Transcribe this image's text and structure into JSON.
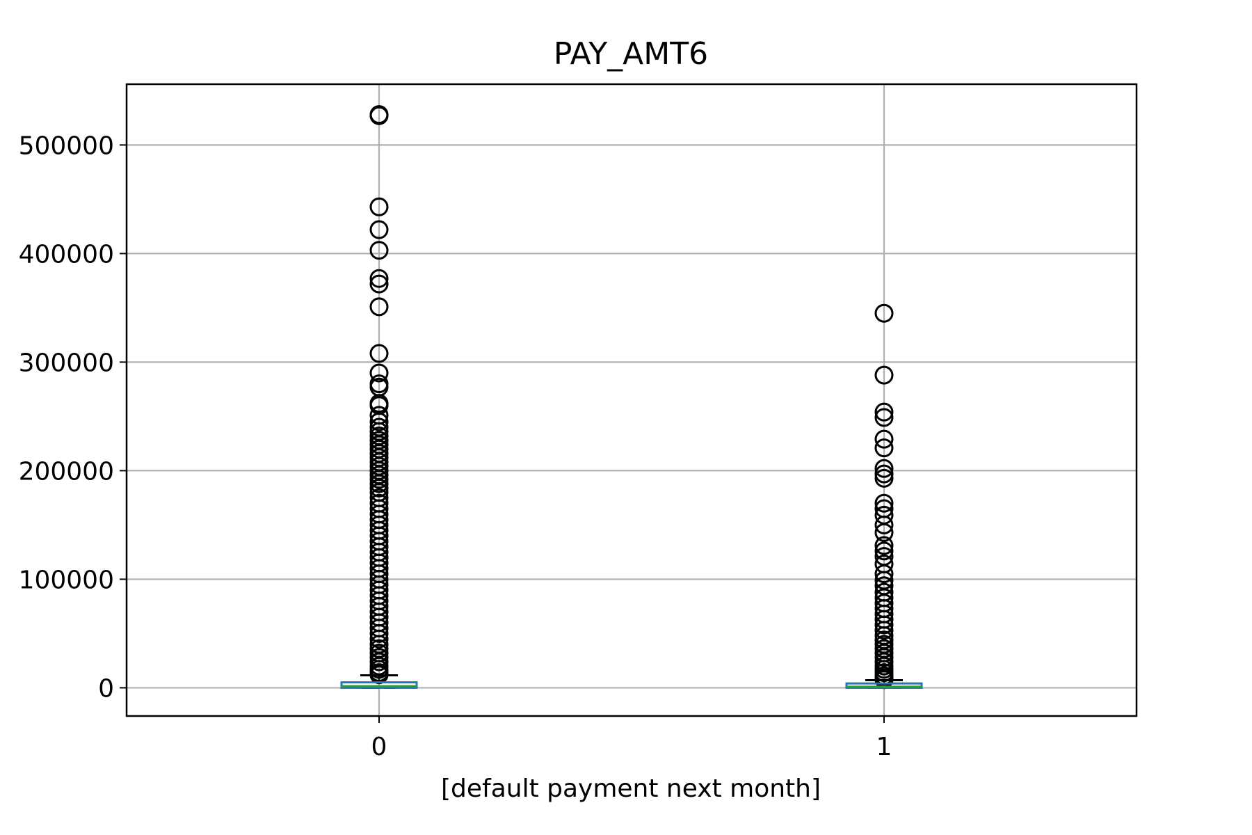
{
  "chart_data": {
    "type": "box",
    "title": "PAY_AMT6",
    "xlabel": "[default payment next month]",
    "ylabel": "",
    "categories": [
      "0",
      "1"
    ],
    "ylim": [
      -26000,
      556000
    ],
    "yticks": [
      0,
      100000,
      200000,
      300000,
      400000,
      500000
    ],
    "ytick_labels": [
      "0",
      "100000",
      "200000",
      "300000",
      "400000",
      "500000"
    ],
    "grid": true,
    "colors": {
      "box": "#1f77b4",
      "median": "#2ca02c",
      "whisker": "#000000",
      "flier": "#000000",
      "grid": "#b0b0b0"
    },
    "boxes": [
      {
        "category": "0",
        "whisker_low": 0,
        "q1": 0,
        "median": 1500,
        "q3": 5000,
        "whisker_high": 11500,
        "fliers": [
          528000,
          527000,
          443000,
          422000,
          403000,
          377000,
          372000,
          351000,
          308000,
          290000,
          280000,
          277000,
          262000,
          260000,
          251000,
          245000,
          240000,
          236000,
          232000,
          228000,
          224000,
          220000,
          216000,
          212000,
          208000,
          204000,
          200000,
          196000,
          192000,
          188000,
          184000,
          180000,
          175000,
          170000,
          165000,
          160000,
          155000,
          150000,
          145000,
          140000,
          135000,
          130000,
          125000,
          120000,
          115000,
          110000,
          105000,
          100000,
          95000,
          90000,
          85000,
          80000,
          75000,
          70000,
          65000,
          60000,
          55000,
          50000,
          45000,
          40000,
          36000,
          32000,
          28000,
          24000,
          20000,
          17000,
          14000,
          12000
        ]
      },
      {
        "category": "1",
        "whisker_low": 0,
        "q1": 0,
        "median": 1000,
        "q3": 4000,
        "whisker_high": 7000,
        "fliers": [
          345000,
          288000,
          254000,
          249000,
          229000,
          221000,
          202000,
          197000,
          193000,
          170000,
          165000,
          159000,
          150000,
          143000,
          131000,
          126000,
          121000,
          114000,
          105000,
          99000,
          94000,
          88000,
          83000,
          78000,
          73000,
          68000,
          63000,
          58000,
          53000,
          48000,
          44000,
          40000,
          36000,
          32000,
          28000,
          24000,
          20000,
          17000,
          14000,
          11000,
          9000,
          7500
        ]
      }
    ]
  }
}
